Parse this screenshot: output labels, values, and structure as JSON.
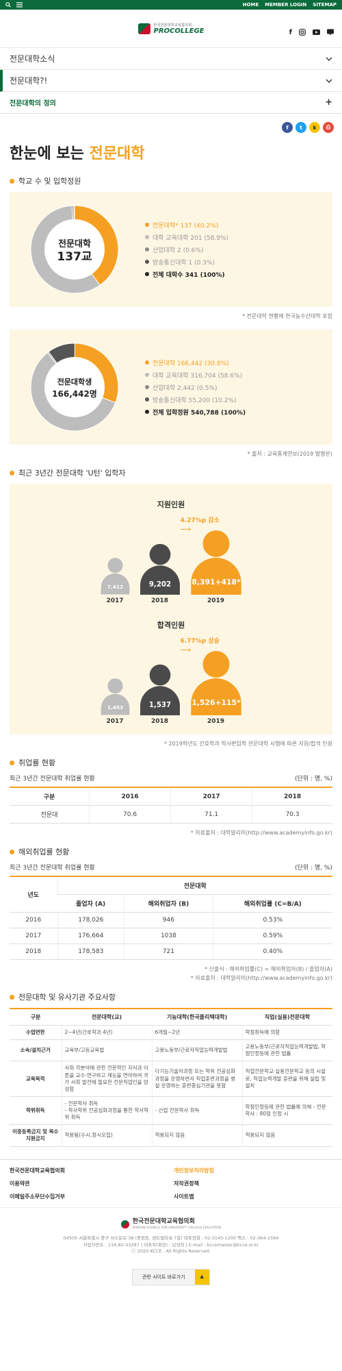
{
  "topbar": {
    "links": [
      "HOME",
      "MEMBER LOGIN",
      "SITEMAP"
    ]
  },
  "header": {
    "logo_small": "한국전문대학교육협의회",
    "logo_big": "PROCOLLEGE",
    "social_icons": [
      "facebook-icon",
      "instagram-icon",
      "youtube-icon",
      "blog-icon"
    ]
  },
  "menu": [
    {
      "label": "전문대학소식",
      "icon": "chevron-down"
    },
    {
      "label": "전문대학?!",
      "icon": "chevron-down"
    },
    {
      "label": "전문대학의 정의",
      "icon": "plus"
    }
  ],
  "share_icons": [
    "facebook-icon",
    "twitter-icon",
    "kakao-icon",
    "print-icon"
  ],
  "page_title": {
    "main": "한눈에 보는 ",
    "highlight": "전문대학"
  },
  "schools": {
    "section_title": "학교 수 및 입학정원",
    "donut1": {
      "center_line1": "전문대학",
      "center_line2": "137교",
      "legend": [
        {
          "label": "전문대학* 137 (40.2%)",
          "color": "#f5a022"
        },
        {
          "label": "대학 교육대학 201 (58.9%)",
          "color": "#bdbdbd"
        },
        {
          "label": "산업대학 2 (0.6%)",
          "color": "#8a8a8a"
        },
        {
          "label": "방송통신대학 1 (0.3%)",
          "color": "#555555"
        },
        {
          "label": "전체 대학수 341 (100%)",
          "color": "#222222"
        }
      ]
    },
    "source1": "* 전문대학 현황에 한국농수산대학 포함",
    "donut2": {
      "center_line1": "전문대학생",
      "center_line2": "166,442명",
      "legend": [
        {
          "label": "전문대학 166,442 (30.8%)",
          "color": "#f5a022"
        },
        {
          "label": "대학 교육대학 316,704 (58.6%)",
          "color": "#bdbdbd"
        },
        {
          "label": "산업대학 2,442 (0.5%)",
          "color": "#8a8a8a"
        },
        {
          "label": "방송통신대학 55,200 (10.2%)",
          "color": "#555555"
        },
        {
          "label": "전체 입학정원 540,788 (100%)",
          "color": "#222222"
        }
      ]
    },
    "source2": "* 출처 : 교육통계연보(2019 발행본)"
  },
  "uturn": {
    "section_title": "최근 3년간 전문대학 'U턴' 입학자",
    "applicants": {
      "title": "지원인원",
      "change": "4.27%p 감소",
      "people": [
        {
          "year": "2017",
          "value": "7,412",
          "color": "#bdbdbd",
          "size": 1
        },
        {
          "year": "2018",
          "value": "9,202",
          "color": "#4a4a4a",
          "size": 2
        },
        {
          "year": "2019",
          "value": "8,391+418*",
          "color": "#f5a022",
          "size": 3
        }
      ]
    },
    "admitted": {
      "title": "합격인원",
      "change": "6.77%p 상승",
      "people": [
        {
          "year": "2017",
          "value": "1,453",
          "color": "#bdbdbd",
          "size": 1
        },
        {
          "year": "2018",
          "value": "1,537",
          "color": "#4a4a4a",
          "size": 2
        },
        {
          "year": "2019",
          "value": "1,526+115*",
          "color": "#f5a022",
          "size": 3
        }
      ]
    },
    "note": "* 2019학년도 간호학과 학사편입학 전문대학 시행에 따른 지원/합격 인원"
  },
  "employment": {
    "section_title": "취업률 현황",
    "subtitle": "최근 3년간 전문대학 취업률 현황",
    "unit": "(단위 : 명, %)",
    "headers": [
      "구분",
      "2016",
      "2017",
      "2018"
    ],
    "rows": [
      [
        "전문대",
        "70.6",
        "71.1",
        "70.3"
      ]
    ],
    "source": "* 자료출처 : 대학알리미(http://www.academyinfo.go.kr)"
  },
  "overseas": {
    "section_title": "해외취업률 현황",
    "subtitle": "최근 3년간 전문대학 취업률 현황",
    "unit": "(단위 : 명, %)",
    "group_header": "전문대학",
    "year_header": "년도",
    "headers": [
      "졸업자 (A)",
      "해외취업자 (B)",
      "해외취업률 (C=B/A)"
    ],
    "rows": [
      [
        "2016",
        "178,026",
        "946",
        "0.53%"
      ],
      [
        "2017",
        "176,664",
        "1038",
        "0.59%"
      ],
      [
        "2018",
        "178,583",
        "721",
        "0.40%"
      ]
    ],
    "source1": "* 산출식 : 해외취업률(C) = 해외취업자(B) / 졸업자(A)",
    "source2": "* 자료출처 : 대학알리미(http://www.academyinfo.go.kr)"
  },
  "compare": {
    "section_title": "전문대학 및 유사기관 주요사항",
    "headers": [
      "구분",
      "전문대학(교)",
      "기능대학(한국폴리텍대학)",
      "직업(실용)전문대학"
    ],
    "rows": [
      [
        "수업연한",
        "2~4년(간호학과 4년)",
        "6개월~2년",
        "학점취득에 의함"
      ],
      [
        "소속/설치근거",
        "교육부/고등교육법",
        "고용노동부/근로자직업능력개발법",
        "고용노동부/근로자직업능력개발법, 학점인정등에 관한 법률"
      ],
      [
        "교육목적",
        "사회 각분야에 관한 전문적인 지식과 이론을 교수·연구하고 재능을 연마하여 국가 사회 발전에 필요한 전문직업인을 양성함",
        "다기능기술자과정 또는 학위 전공심화과정을 운영하면서 직업훈련과정을 병설 운영하는 훈련중심기관을 뜻함",
        "직업전문학교·실용전문학교 등의 시설로, 직업능력개발 훈련을 위해 설립 및 설치"
      ],
      [
        "학위취득",
        "- 전문학사 취득\n- 학사학위 전공심화과정을 통한 학사학위 취득",
        "- 산업 전문학사 취득",
        "학점인정등에 관한 법률에 의해 - 전문학사 : 80점 인정 시"
      ],
      [
        "이중등록금지 및 복수지원금지",
        "적용됨(수시,정시모집)",
        "적용되지 않음",
        "적용되지 않음"
      ]
    ]
  },
  "footer": {
    "links": [
      "한국전문대학교육협의회",
      "개인정보처리방침",
      "이용약관",
      "저작권정책",
      "이메일주소무단수집거부",
      "사이트맵"
    ],
    "logo_text": "한국전문대학교육협의회",
    "logo_sub": "KOREAN COUNCIL FOR UNIVERSITY COLLEGE EDUCATION",
    "address": "04505 서울특별시 중구 서소문로 38 (중림동, 센트럴타워 7층) 대표전화 : 02-3145-1200 팩스 : 02-364-1584",
    "biz": "사업자번호 : 116-82-03287 | 대표자(회장) : 남성희 | E-mail : kccemaster@kcce.or.kr",
    "copyright": "ⓒ 2020 KCCE . All Rights Reserved.",
    "related_label": "관련 사이트 바로가기",
    "related_arrow": "▲"
  }
}
